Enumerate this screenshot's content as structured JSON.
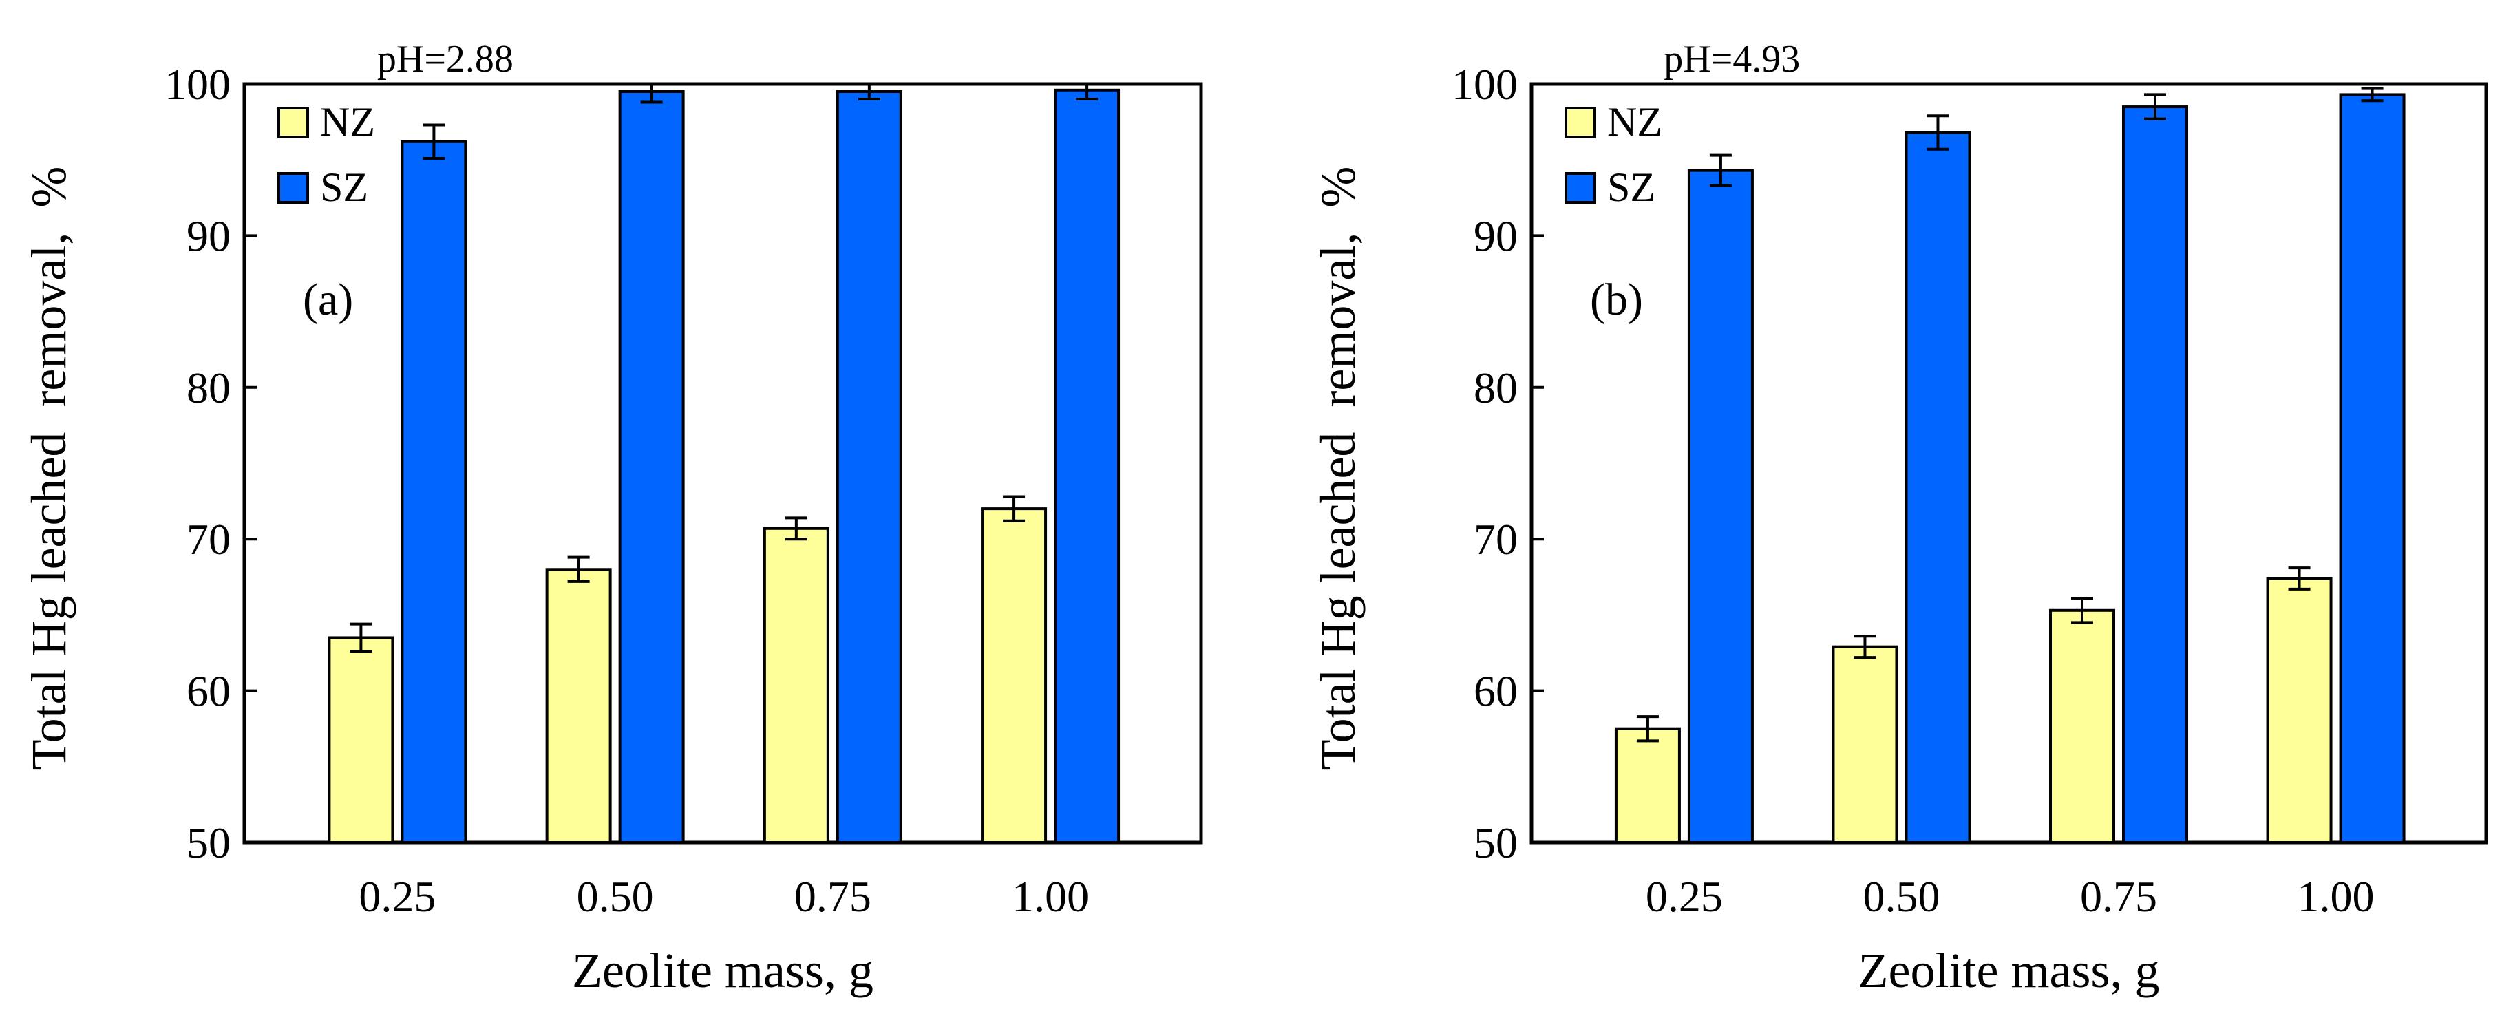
{
  "chart_data": [
    {
      "type": "bar",
      "panel_label": "(a)",
      "title": "pH=2.88",
      "xlabel": "Zeolite mass, g",
      "ylabel": "Total Hg leached  removal,  %",
      "categories": [
        "0.25",
        "0.50",
        "0.75",
        "1.00"
      ],
      "ylim": [
        50,
        100
      ],
      "yticks": [
        50,
        60,
        70,
        80,
        90,
        100
      ],
      "legend_position": "top-left",
      "series": [
        {
          "name": "NZ",
          "color": "#ffff99",
          "values": [
            63.5,
            68.0,
            70.7,
            72.0
          ],
          "errors": [
            0.9,
            0.8,
            0.7,
            0.8
          ]
        },
        {
          "name": "SZ",
          "color": "#0066ff",
          "values": [
            96.2,
            99.5,
            99.5,
            99.6
          ],
          "errors": [
            1.1,
            0.7,
            0.5,
            0.6
          ]
        }
      ]
    },
    {
      "type": "bar",
      "panel_label": "(b)",
      "title": "pH=4.93",
      "xlabel": "Zeolite mass, g",
      "ylabel": "Total Hg leached  removal,  %",
      "categories": [
        "0.25",
        "0.50",
        "0.75",
        "1.00"
      ],
      "ylim": [
        50,
        100
      ],
      "yticks": [
        50,
        60,
        70,
        80,
        90,
        100
      ],
      "legend_position": "top-left",
      "series": [
        {
          "name": "NZ",
          "color": "#ffff99",
          "values": [
            57.5,
            62.9,
            65.3,
            67.4
          ],
          "errors": [
            0.8,
            0.7,
            0.8,
            0.7
          ]
        },
        {
          "name": "SZ",
          "color": "#0066ff",
          "values": [
            94.3,
            96.8,
            98.5,
            99.3
          ],
          "errors": [
            1.0,
            1.1,
            0.8,
            0.4
          ]
        }
      ]
    }
  ]
}
